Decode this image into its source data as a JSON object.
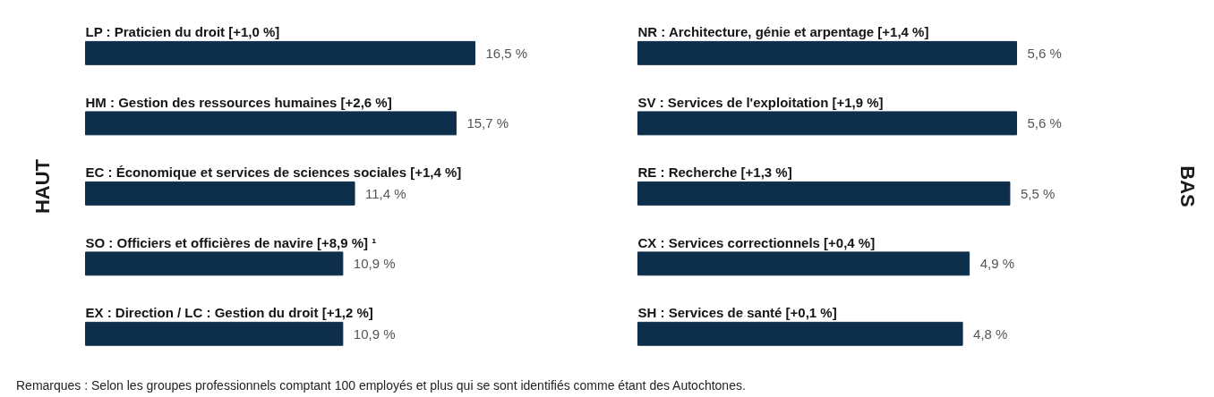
{
  "chart_data": [
    {
      "type": "bar",
      "orientation": "horizontal",
      "data_labels": true,
      "categories": [
        "LP : Praticien du droit [+1,0 %]",
        "HM : Gestion des ressources humaines [+2,6 %]",
        "EC : Économique et services de sciences sociales [+1,4 %]",
        "SO : Officiers et officières de navire [+8,9 %] ¹",
        "EX : Direction / LC : Gestion du droit [+1,2 %]"
      ],
      "values": [
        16.5,
        15.7,
        11.4,
        10.9,
        10.9
      ],
      "value_labels": [
        "16,5 %",
        "15,7 %",
        "11,4 %",
        "10,9 %",
        "10,9 %"
      ],
      "color": "#0e2f4b",
      "annotations": [
        "HAUT",
        "Remarques : Selon les groupes professionnels comptant 100 employés et plus qui se sont identifiés comme étant des Autochtones."
      ]
    },
    {
      "type": "bar",
      "orientation": "horizontal",
      "data_labels": true,
      "categories": [
        "NR : Architecture, génie et arpentage [+1,4 %]",
        "SV : Services de l'exploitation [+1,9 %]",
        "RE : Recherche [+1,3 %]",
        "CX : Services correctionnels [+0,4 %]",
        "SH : Services de santé [+0,1 %]"
      ],
      "values": [
        5.6,
        5.6,
        5.5,
        4.9,
        4.8
      ],
      "value_labels": [
        "5,6 %",
        "5,6 %",
        "5,5 %",
        "4,9 %",
        "4,8 %"
      ],
      "color": "#0e2f4b",
      "annotations": [
        "BAS"
      ]
    }
  ]
}
